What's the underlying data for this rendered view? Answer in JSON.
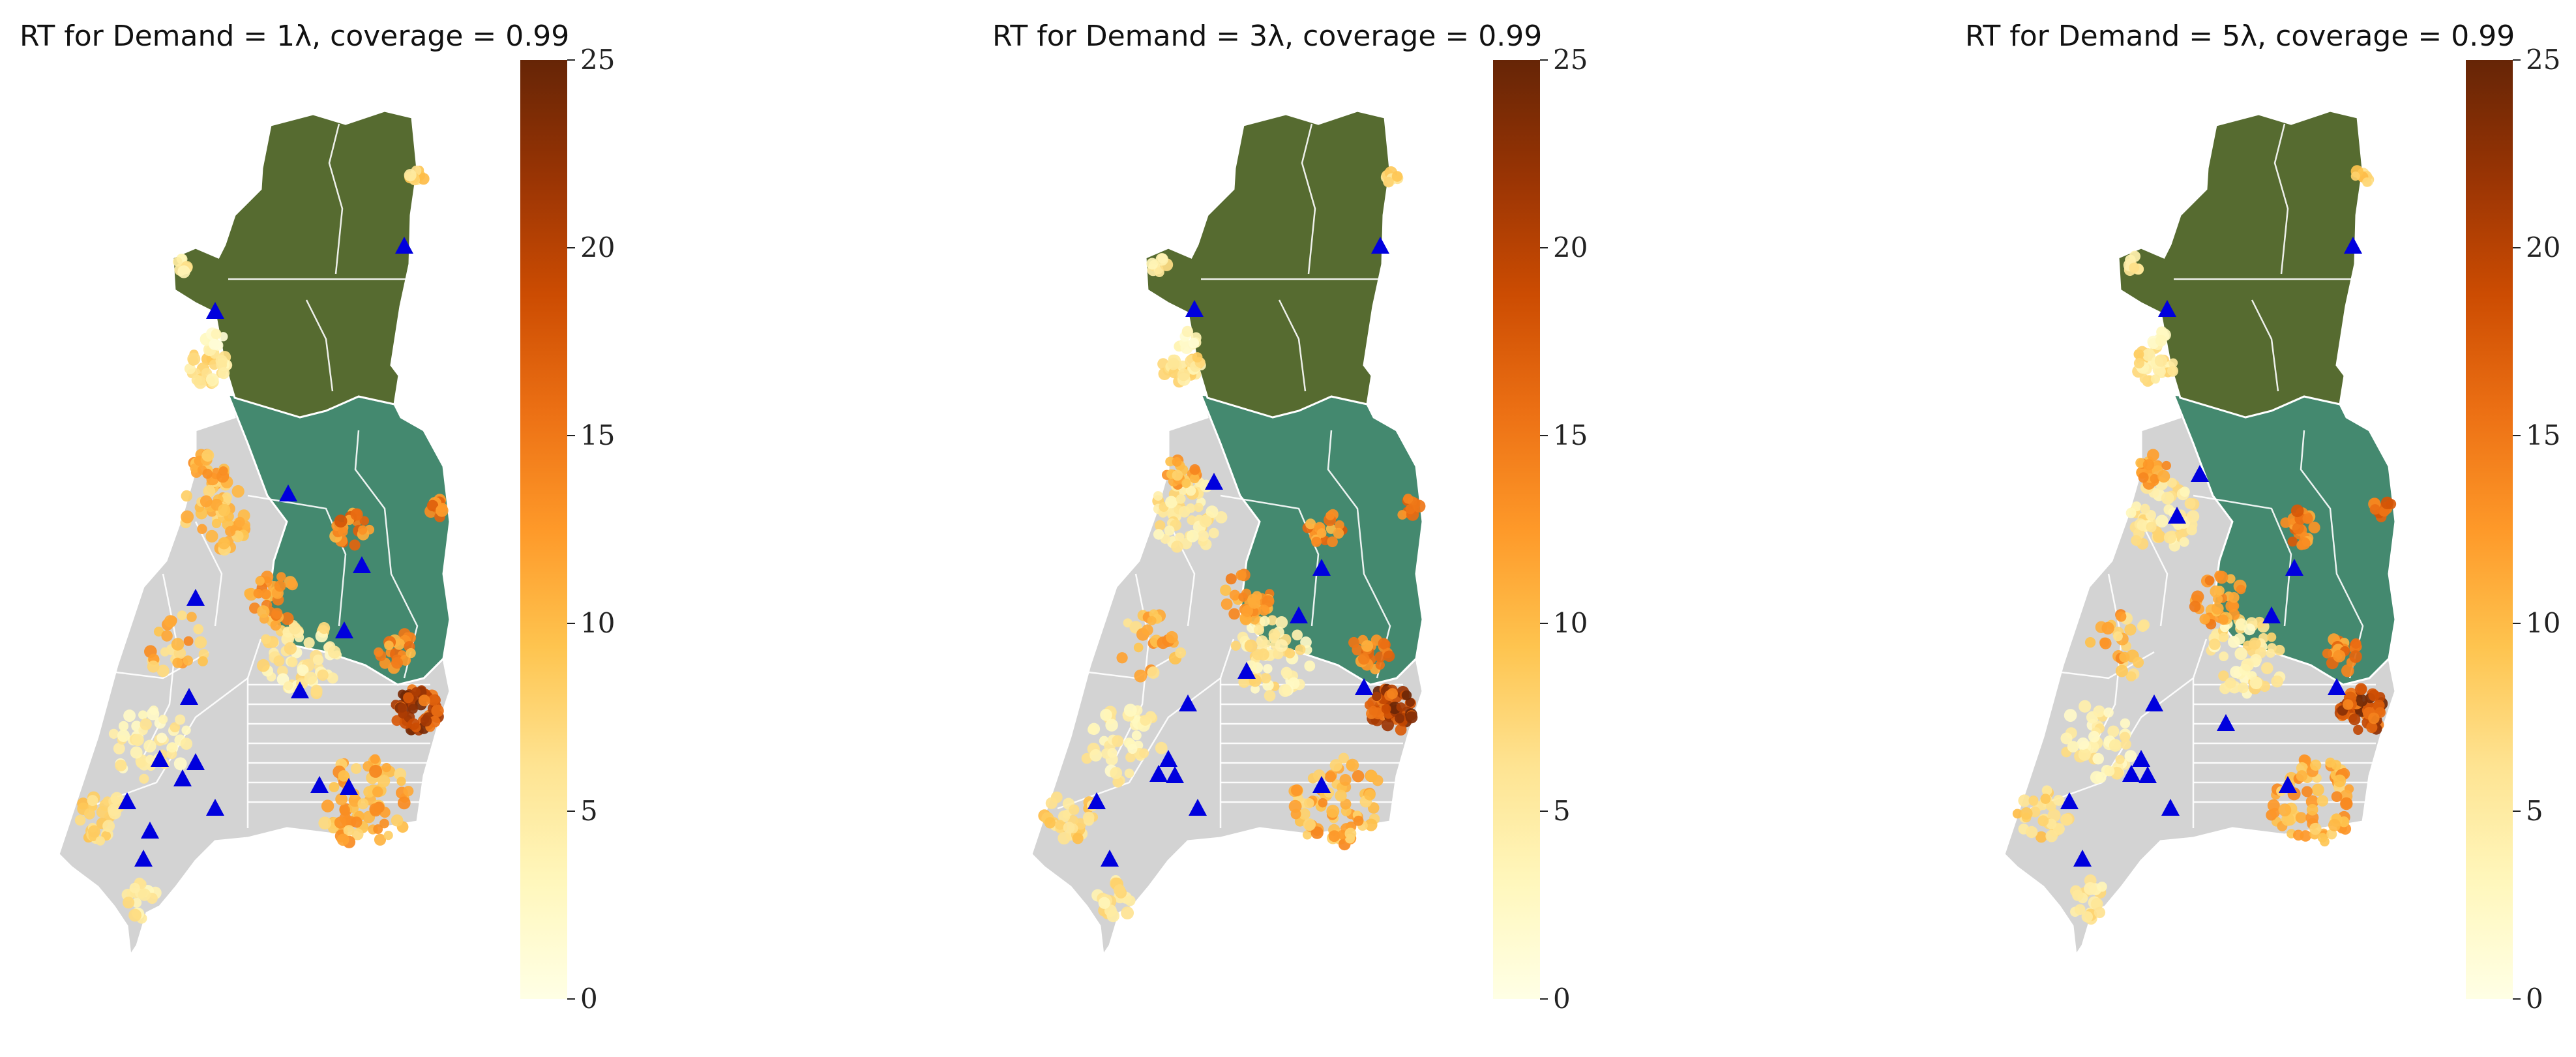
{
  "figure": {
    "panels": [
      {
        "title": "RT for Demand = 1λ, coverage = 0.99",
        "demand_multiplier": 1,
        "coverage": 0.99
      },
      {
        "title": "RT for Demand = 3λ, coverage = 0.99",
        "demand_multiplier": 3,
        "coverage": 0.99
      },
      {
        "title": "RT for Demand = 5λ, coverage = 0.99",
        "demand_multiplier": 5,
        "coverage": 0.99
      }
    ],
    "colorbar": {
      "range": [
        0,
        25
      ],
      "ticks": [
        "0",
        "5",
        "10",
        "15",
        "20",
        "25"
      ],
      "colormap": [
        "#ffffe5",
        "#fff7bc",
        "#fee391",
        "#fec44f",
        "#fe9929",
        "#ec7014",
        "#cc4c02",
        "#993404",
        "#662506"
      ]
    },
    "legend_colors": {
      "northern_region": "#566b30",
      "central_region": "#44896f",
      "southern_region": "#d3d3d3",
      "boundaries": "#ffffff",
      "facility_marker": "#0000dd"
    },
    "marker_icon": "triangle-icon"
  }
}
